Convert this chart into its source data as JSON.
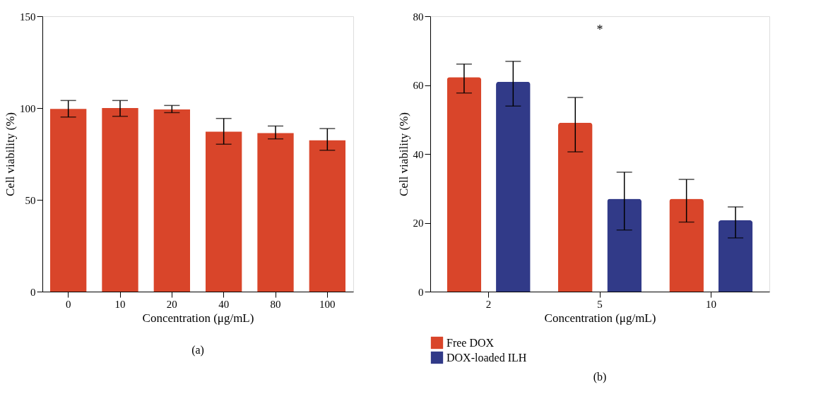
{
  "chart_data": [
    {
      "type": "bar",
      "categories": [
        "0",
        "10",
        "20",
        "40",
        "80",
        "100"
      ],
      "values": [
        99.5,
        100,
        99.2,
        87.1,
        86.3,
        82.4
      ],
      "color": "#d9452a",
      "errors": [
        [
          95.1,
          104.1
        ],
        [
          95.5,
          104.1
        ],
        [
          97.5,
          101.4
        ],
        [
          80.3,
          94.3
        ],
        [
          83.2,
          90.2
        ],
        [
          77,
          88.8
        ]
      ],
      "ylim": [
        0,
        150
      ],
      "yticks": [
        0,
        50,
        100,
        150
      ],
      "xlabel": "Concentration (μg/mL)",
      "ylabel": "Cell viability (%)",
      "grid": false,
      "annotations": [
        "(a)"
      ]
    },
    {
      "type": "bar",
      "categories": [
        "2",
        "5",
        "10"
      ],
      "series": [
        {
          "name": "Free DOX",
          "color": "#d9452a",
          "values": [
            62.3,
            49.1,
            27
          ],
          "errors": [
            [
              57.7,
              66.1
            ],
            [
              40.6,
              56.4
            ],
            [
              20.2,
              32.6
            ]
          ]
        },
        {
          "name": "DOX-loaded ILH",
          "color": "#313a88",
          "values": [
            61,
            27,
            20.7
          ],
          "errors": [
            [
              53.9,
              66.9
            ],
            [
              17.9,
              34.7
            ],
            [
              15.6,
              24.6
            ]
          ]
        }
      ],
      "ylim": [
        0,
        80
      ],
      "yticks": [
        0,
        20,
        40,
        60,
        80
      ],
      "xlabel": "Concentration (μg/mL)",
      "ylabel": "Cell viability (%)",
      "grid": false,
      "legend": "bottom",
      "annotations": [
        "*",
        "(b)"
      ]
    }
  ]
}
